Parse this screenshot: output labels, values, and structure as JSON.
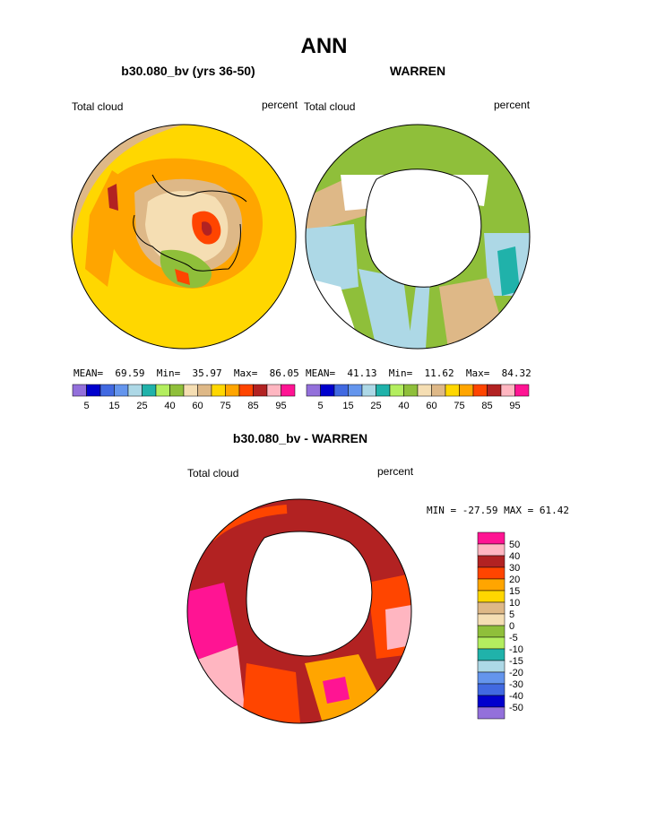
{
  "page": {
    "title": "ANN"
  },
  "panels": [
    {
      "case_title": "b30.080_bv (yrs 36-50)",
      "variable": "Total cloud",
      "units": "percent",
      "stats": {
        "mean_label": "MEAN=",
        "mean": "69.59",
        "min_label": "Min=",
        "min": "35.97",
        "max_label": "Max=",
        "max": "86.05"
      }
    },
    {
      "case_title": "WARREN",
      "variable": "Total cloud",
      "units": "percent",
      "stats": {
        "mean_label": "MEAN=",
        "mean": "41.13",
        "min_label": "Min=",
        "min": "11.62",
        "max_label": "Max=",
        "max": "84.32"
      }
    }
  ],
  "diff_panel": {
    "case_title": "b30.080_bv - WARREN",
    "variable": "Total cloud",
    "units": "percent",
    "minmax_text": "MIN = -27.59 MAX =  61.42"
  },
  "chart_data": [
    {
      "type": "polar_contour",
      "title": "b30.080_bv (yrs 36-50)",
      "projection": "south polar stereographic",
      "variable": "Total cloud",
      "units": "percent",
      "mean": 69.59,
      "min": 35.97,
      "max": 86.05,
      "colorbar_levels": [
        5,
        10,
        15,
        20,
        25,
        30,
        40,
        50,
        60,
        70,
        75,
        80,
        85,
        90,
        95
      ],
      "colorbar_tick_labels": [
        "5",
        "15",
        "25",
        "40",
        "60",
        "75",
        "85",
        "95"
      ],
      "colors": [
        "#9370db",
        "#0000cd",
        "#4169e1",
        "#6495ed",
        "#add8e6",
        "#20b2aa",
        "#b3ee5f",
        "#8fbf3a",
        "#f5deb3",
        "#deb887",
        "#ffd700",
        "#ffa500",
        "#ff4500",
        "#b22222",
        "#ffb6c1",
        "#ff1493"
      ]
    },
    {
      "type": "polar_contour",
      "title": "WARREN",
      "projection": "south polar stereographic",
      "variable": "Total cloud",
      "units": "percent",
      "mean": 41.13,
      "min": 11.62,
      "max": 84.32,
      "colorbar_levels": [
        5,
        10,
        15,
        20,
        25,
        30,
        40,
        50,
        60,
        70,
        75,
        80,
        85,
        90,
        95
      ],
      "colorbar_tick_labels": [
        "5",
        "15",
        "25",
        "40",
        "60",
        "75",
        "85",
        "95"
      ],
      "colors": [
        "#9370db",
        "#0000cd",
        "#4169e1",
        "#6495ed",
        "#add8e6",
        "#20b2aa",
        "#b3ee5f",
        "#8fbf3a",
        "#f5deb3",
        "#deb887",
        "#ffd700",
        "#ffa500",
        "#ff4500",
        "#b22222",
        "#ffb6c1",
        "#ff1493"
      ]
    },
    {
      "type": "polar_contour",
      "title": "b30.080_bv - WARREN",
      "projection": "south polar stereographic",
      "variable": "Total cloud",
      "units": "percent",
      "min": -27.59,
      "max": 61.42,
      "colorbar_labels": [
        "50",
        "40",
        "30",
        "20",
        "15",
        "10",
        "5",
        "0",
        "-5",
        "-10",
        "-15",
        "-20",
        "-30",
        "-40",
        "-50"
      ],
      "colors_top_to_bottom": [
        "#ff1493",
        "#ffb6c1",
        "#b22222",
        "#ff4500",
        "#ffa500",
        "#ffd700",
        "#deb887",
        "#f5deb3",
        "#8fbf3a",
        "#b3ee5f",
        "#20b2aa",
        "#add8e6",
        "#6495ed",
        "#4169e1",
        "#0000cd",
        "#9370db"
      ]
    }
  ]
}
